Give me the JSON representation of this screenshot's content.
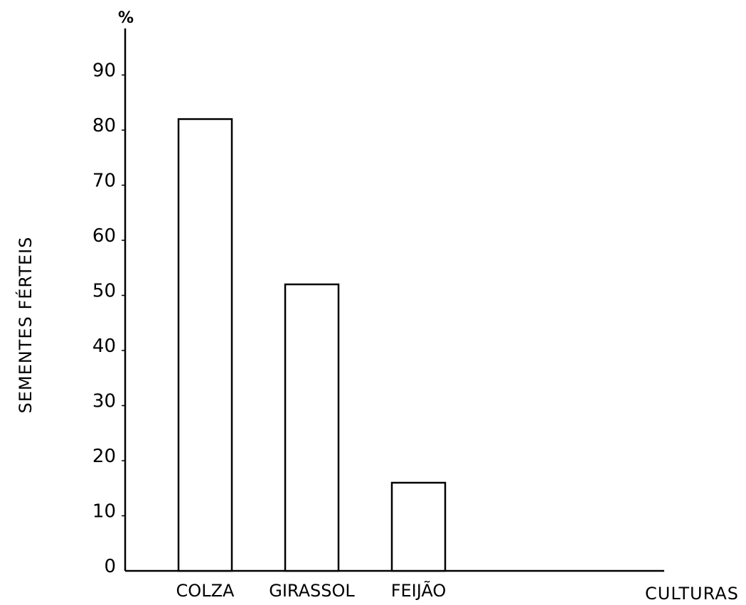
{
  "chart_data": {
    "type": "bar",
    "categories": [
      "COLZA",
      "GIRASSOL",
      "FEIJÃO"
    ],
    "values": [
      82,
      52,
      16
    ],
    "ylabel": "SEMENTES FÉRTEIS",
    "xlabel": "CULTURAS",
    "y_unit": "%",
    "ylim": [
      0,
      90
    ],
    "yticks": [
      "0",
      "10",
      "20",
      "30",
      "40",
      "50",
      "60",
      "70",
      "80",
      "90"
    ],
    "grid": false,
    "bar_fill": "#ffffff",
    "bar_stroke": "#000000"
  }
}
